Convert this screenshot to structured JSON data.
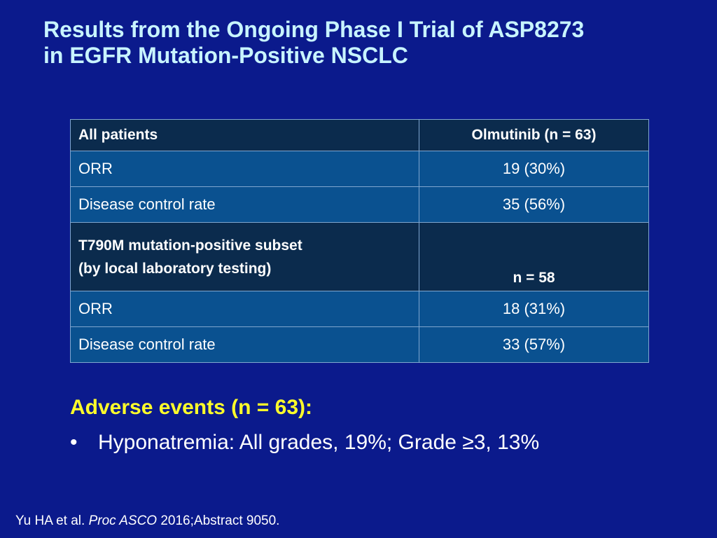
{
  "title": {
    "line1": "Results from the Ongoing Phase I Trial of ASP8273",
    "line2": "in EGFR Mutation-Positive NSCLC"
  },
  "table": {
    "all_patients": {
      "label": "All patients",
      "column": "Olmutinib (n = 63)",
      "rows": [
        {
          "label": "ORR",
          "value": "19 (30%)"
        },
        {
          "label": "Disease control rate",
          "value": "35 (56%)"
        }
      ]
    },
    "t790m": {
      "label_line1": "T790M mutation-positive subset",
      "label_line2": "(by local laboratory testing)",
      "column": "n = 58",
      "rows": [
        {
          "label": "ORR",
          "value": "18 (31%)"
        },
        {
          "label": "Disease control rate",
          "value": "33 (57%)"
        }
      ]
    }
  },
  "adverse_events": {
    "heading": "Adverse events (n = 63):",
    "bullet_symbol": "•",
    "items": [
      "Hyponatremia: All grades, 19%; Grade ≥3, 13%"
    ]
  },
  "citation": {
    "authors": "Yu HA et al.",
    "journal": "Proc ASCO",
    "details": "2016;Abstract 9050."
  }
}
